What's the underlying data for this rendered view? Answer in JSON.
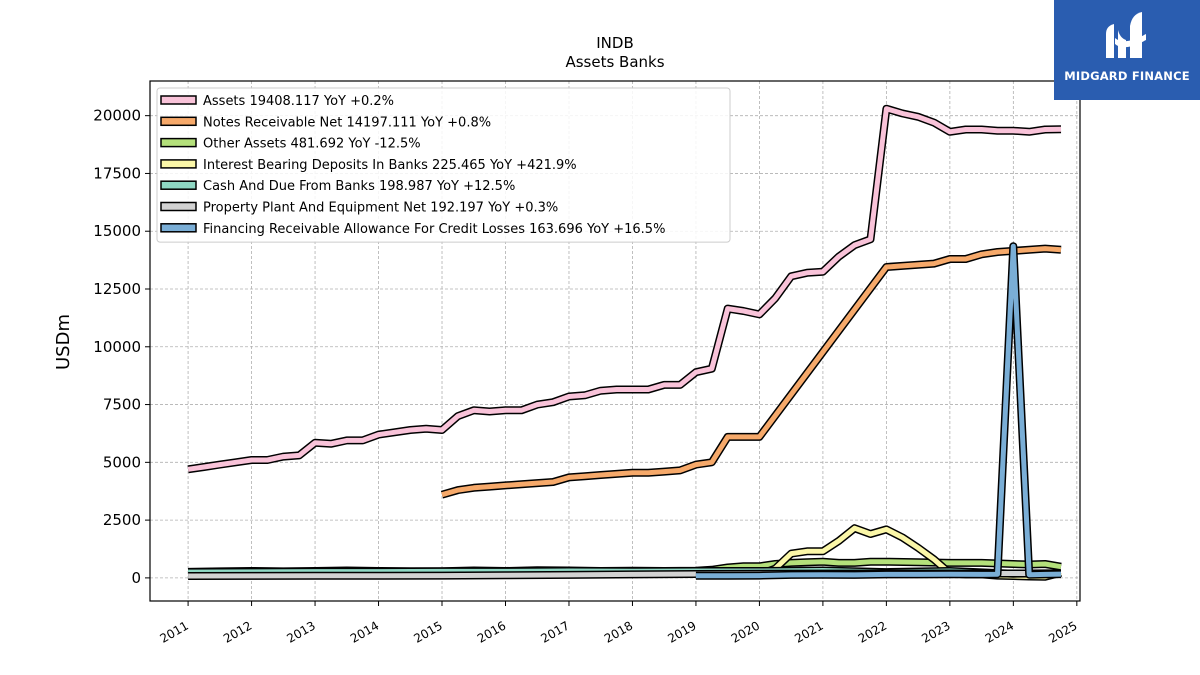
{
  "logo": {
    "text": "MIDGARD FINANCE",
    "background": "#2a5db0"
  },
  "chart_data": {
    "type": "line",
    "title": "INDB",
    "subtitle": "Assets Banks",
    "ylabel": "USDm",
    "xlabel": "",
    "xlim": [
      2010.4,
      2025.05
    ],
    "ylim": [
      -1000,
      21500
    ],
    "x_ticks": [
      2011,
      2012,
      2013,
      2014,
      2015,
      2016,
      2017,
      2018,
      2019,
      2020,
      2021,
      2022,
      2023,
      2024,
      2025
    ],
    "y_ticks": [
      0,
      2500,
      5000,
      7500,
      10000,
      12500,
      15000,
      17500,
      20000
    ],
    "grid": true,
    "legend_position": "top-left",
    "series": [
      {
        "name": "Assets",
        "legend": "Assets  19408.117 YoY +0.2%",
        "color": "#f9c3d9",
        "x": [
          2011.0,
          2011.25,
          2011.5,
          2011.75,
          2012.0,
          2012.25,
          2012.5,
          2012.75,
          2013.0,
          2013.25,
          2013.5,
          2013.75,
          2014.0,
          2014.25,
          2014.5,
          2014.75,
          2015.0,
          2015.25,
          2015.5,
          2015.75,
          2016.0,
          2016.25,
          2016.5,
          2016.75,
          2017.0,
          2017.25,
          2017.5,
          2017.75,
          2018.0,
          2018.25,
          2018.5,
          2018.75,
          2019.0,
          2019.25,
          2019.5,
          2019.75,
          2020.0,
          2020.25,
          2020.5,
          2020.75,
          2021.0,
          2021.25,
          2021.5,
          2021.75,
          2022.0,
          2022.25,
          2022.5,
          2022.75,
          2023.0,
          2023.25,
          2023.5,
          2023.75,
          2024.0,
          2024.25,
          2024.5,
          2024.75
        ],
        "values": [
          4700,
          4800,
          4900,
          5000,
          5100,
          5100,
          5250,
          5300,
          5850,
          5800,
          5950,
          5950,
          6200,
          6300,
          6400,
          6450,
          6400,
          7000,
          7250,
          7200,
          7250,
          7250,
          7500,
          7600,
          7850,
          7900,
          8100,
          8150,
          8150,
          8150,
          8350,
          8350,
          8900,
          9050,
          11650,
          11550,
          11400,
          12100,
          13050,
          13200,
          13250,
          13900,
          14400,
          14650,
          20300,
          20100,
          19950,
          19700,
          19300,
          19400,
          19400,
          19350,
          19350,
          19300,
          19400,
          19408
        ]
      },
      {
        "name": "Notes Receivable Net",
        "legend": "Notes Receivable Net  14197.111 YoY +0.8%",
        "color": "#f6a96a",
        "x": [
          2015.0,
          2015.25,
          2015.5,
          2015.75,
          2016.0,
          2016.25,
          2016.5,
          2016.75,
          2017.0,
          2017.25,
          2017.5,
          2017.75,
          2018.0,
          2018.25,
          2018.5,
          2018.75,
          2019.0,
          2019.25,
          2019.5,
          2019.75,
          2020.0,
          2022.0,
          2022.25,
          2022.5,
          2022.75,
          2023.0,
          2023.25,
          2023.5,
          2023.75,
          2024.0,
          2024.25,
          2024.5,
          2024.75
        ],
        "values": [
          3600,
          3800,
          3900,
          3950,
          4000,
          4050,
          4100,
          4150,
          4350,
          4400,
          4450,
          4500,
          4550,
          4550,
          4600,
          4650,
          4900,
          5000,
          6100,
          6100,
          6100,
          13450,
          13500,
          13550,
          13600,
          13800,
          13800,
          14000,
          14100,
          14150,
          14200,
          14250,
          14197
        ]
      },
      {
        "name": "Other Assets",
        "legend": "Other Assets  481.692 YoY -12.5%",
        "color": "#b4e07b",
        "x": [
          2011.0,
          2011.5,
          2012.0,
          2012.5,
          2013.0,
          2013.5,
          2014.0,
          2014.5,
          2015.0,
          2015.5,
          2016.0,
          2016.5,
          2017.0,
          2017.5,
          2018.0,
          2018.5,
          2019.0,
          2019.25,
          2019.5,
          2019.75,
          2020.0,
          2020.25,
          2020.5,
          2020.75,
          2021.0,
          2021.25,
          2021.5,
          2021.75,
          2022.0,
          2022.5,
          2023.0,
          2023.5,
          2024.0,
          2024.25,
          2024.5,
          2024.75
        ],
        "values": [
          260,
          280,
          300,
          280,
          300,
          320,
          300,
          290,
          290,
          320,
          300,
          330,
          320,
          300,
          310,
          300,
          310,
          350,
          450,
          500,
          500,
          600,
          650,
          680,
          700,
          650,
          650,
          700,
          700,
          680,
          650,
          650,
          600,
          580,
          600,
          482
        ]
      },
      {
        "name": "Interest Bearing Deposits In Banks",
        "legend": "Interest Bearing Deposits In Banks  225.465 YoY +421.9%",
        "color": "#fbf7a8",
        "x": [
          2020.0,
          2020.25,
          2020.5,
          2020.75,
          2021.0,
          2021.25,
          2021.5,
          2021.75,
          2022.0,
          2022.25,
          2022.5,
          2022.75,
          2023.0,
          2023.25,
          2023.5,
          2023.75,
          2024.0,
          2024.25,
          2024.5,
          2024.75
        ],
        "values": [
          150,
          400,
          1050,
          1150,
          1150,
          1600,
          2150,
          1900,
          2100,
          1750,
          1300,
          800,
          200,
          150,
          150,
          100,
          80,
          60,
          50,
          225
        ]
      },
      {
        "name": "Cash And Due From Banks",
        "legend": "Cash And Due From Banks  198.987 YoY +12.5%",
        "color": "#8fd8c4",
        "x": [
          2011.0,
          2012.0,
          2013.0,
          2014.0,
          2015.0,
          2016.0,
          2017.0,
          2018.0,
          2019.0,
          2020.0,
          2021.0,
          2022.0,
          2023.0,
          2024.0,
          2024.75
        ],
        "values": [
          250,
          260,
          270,
          270,
          280,
          280,
          300,
          290,
          300,
          300,
          320,
          250,
          300,
          180,
          199
        ]
      },
      {
        "name": "Property Plant And Equipment Net",
        "legend": "Property Plant And Equipment Net  192.197 YoY +0.3%",
        "color": "#d2d2d2",
        "x": [
          2011.0,
          2012.0,
          2013.0,
          2014.0,
          2015.0,
          2016.0,
          2017.0,
          2018.0,
          2019.0,
          2020.0,
          2021.0,
          2022.0,
          2023.0,
          2024.0,
          2024.75
        ],
        "values": [
          80,
          85,
          90,
          95,
          100,
          110,
          130,
          150,
          170,
          180,
          185,
          190,
          191,
          192,
          192
        ]
      },
      {
        "name": "Financing Receivable Allowance For Credit Losses",
        "legend": "Financing Receivable Allowance For Credit Losses  163.696 YoY +16.5%",
        "color": "#7aaed6",
        "x": [
          2019.0,
          2019.5,
          2020.0,
          2020.5,
          2021.0,
          2021.5,
          2022.0,
          2022.5,
          2023.0,
          2023.5,
          2023.75,
          2024.0,
          2024.25,
          2024.5,
          2024.75
        ],
        "values": [
          90,
          90,
          100,
          130,
          140,
          130,
          150,
          150,
          160,
          150,
          160,
          14350,
          140,
          150,
          164
        ]
      }
    ]
  }
}
